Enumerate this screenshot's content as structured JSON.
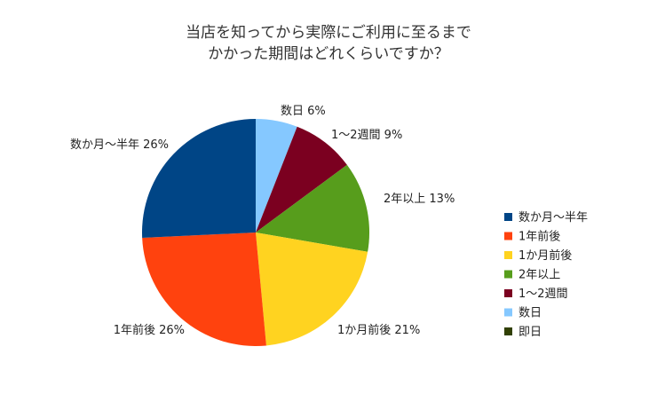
{
  "chart_data": {
    "type": "pie",
    "title": [
      "当店を知ってから実際にご利用に至るまで",
      "かかった期間はどれくらいですか？"
    ],
    "start_angle_deg": 0,
    "direction": "clockwise",
    "legend_position": "right",
    "slices": [
      {
        "name": "数日",
        "value": 6,
        "label": "数日 6%",
        "color": "#85C8FF"
      },
      {
        "name": "1〜2週間",
        "value": 9,
        "label": "1〜2週間 9%",
        "color": "#7B0020"
      },
      {
        "name": "2年以上",
        "value": 13,
        "label": "2年以上 13%",
        "color": "#579D1C"
      },
      {
        "name": "1か月前後",
        "value": 21,
        "label": "1か月前後 21%",
        "color": "#FFD320"
      },
      {
        "name": "1年前後",
        "value": 26,
        "label": "1年前後 26%",
        "color": "#FF420E"
      },
      {
        "name": "数か月〜半年",
        "value": 26,
        "label": "数か月〜半年 26%",
        "color": "#004586"
      }
    ],
    "legend": [
      {
        "name": "数か月〜半年",
        "color": "#004586"
      },
      {
        "name": "1年前後",
        "color": "#FF420E"
      },
      {
        "name": "1か月前後",
        "color": "#FFD320"
      },
      {
        "name": "2年以上",
        "color": "#579D1C"
      },
      {
        "name": "1〜2週間",
        "color": "#7B0020"
      },
      {
        "name": "数日",
        "color": "#85C8FF"
      },
      {
        "name": "即日",
        "color": "#314004"
      }
    ]
  }
}
